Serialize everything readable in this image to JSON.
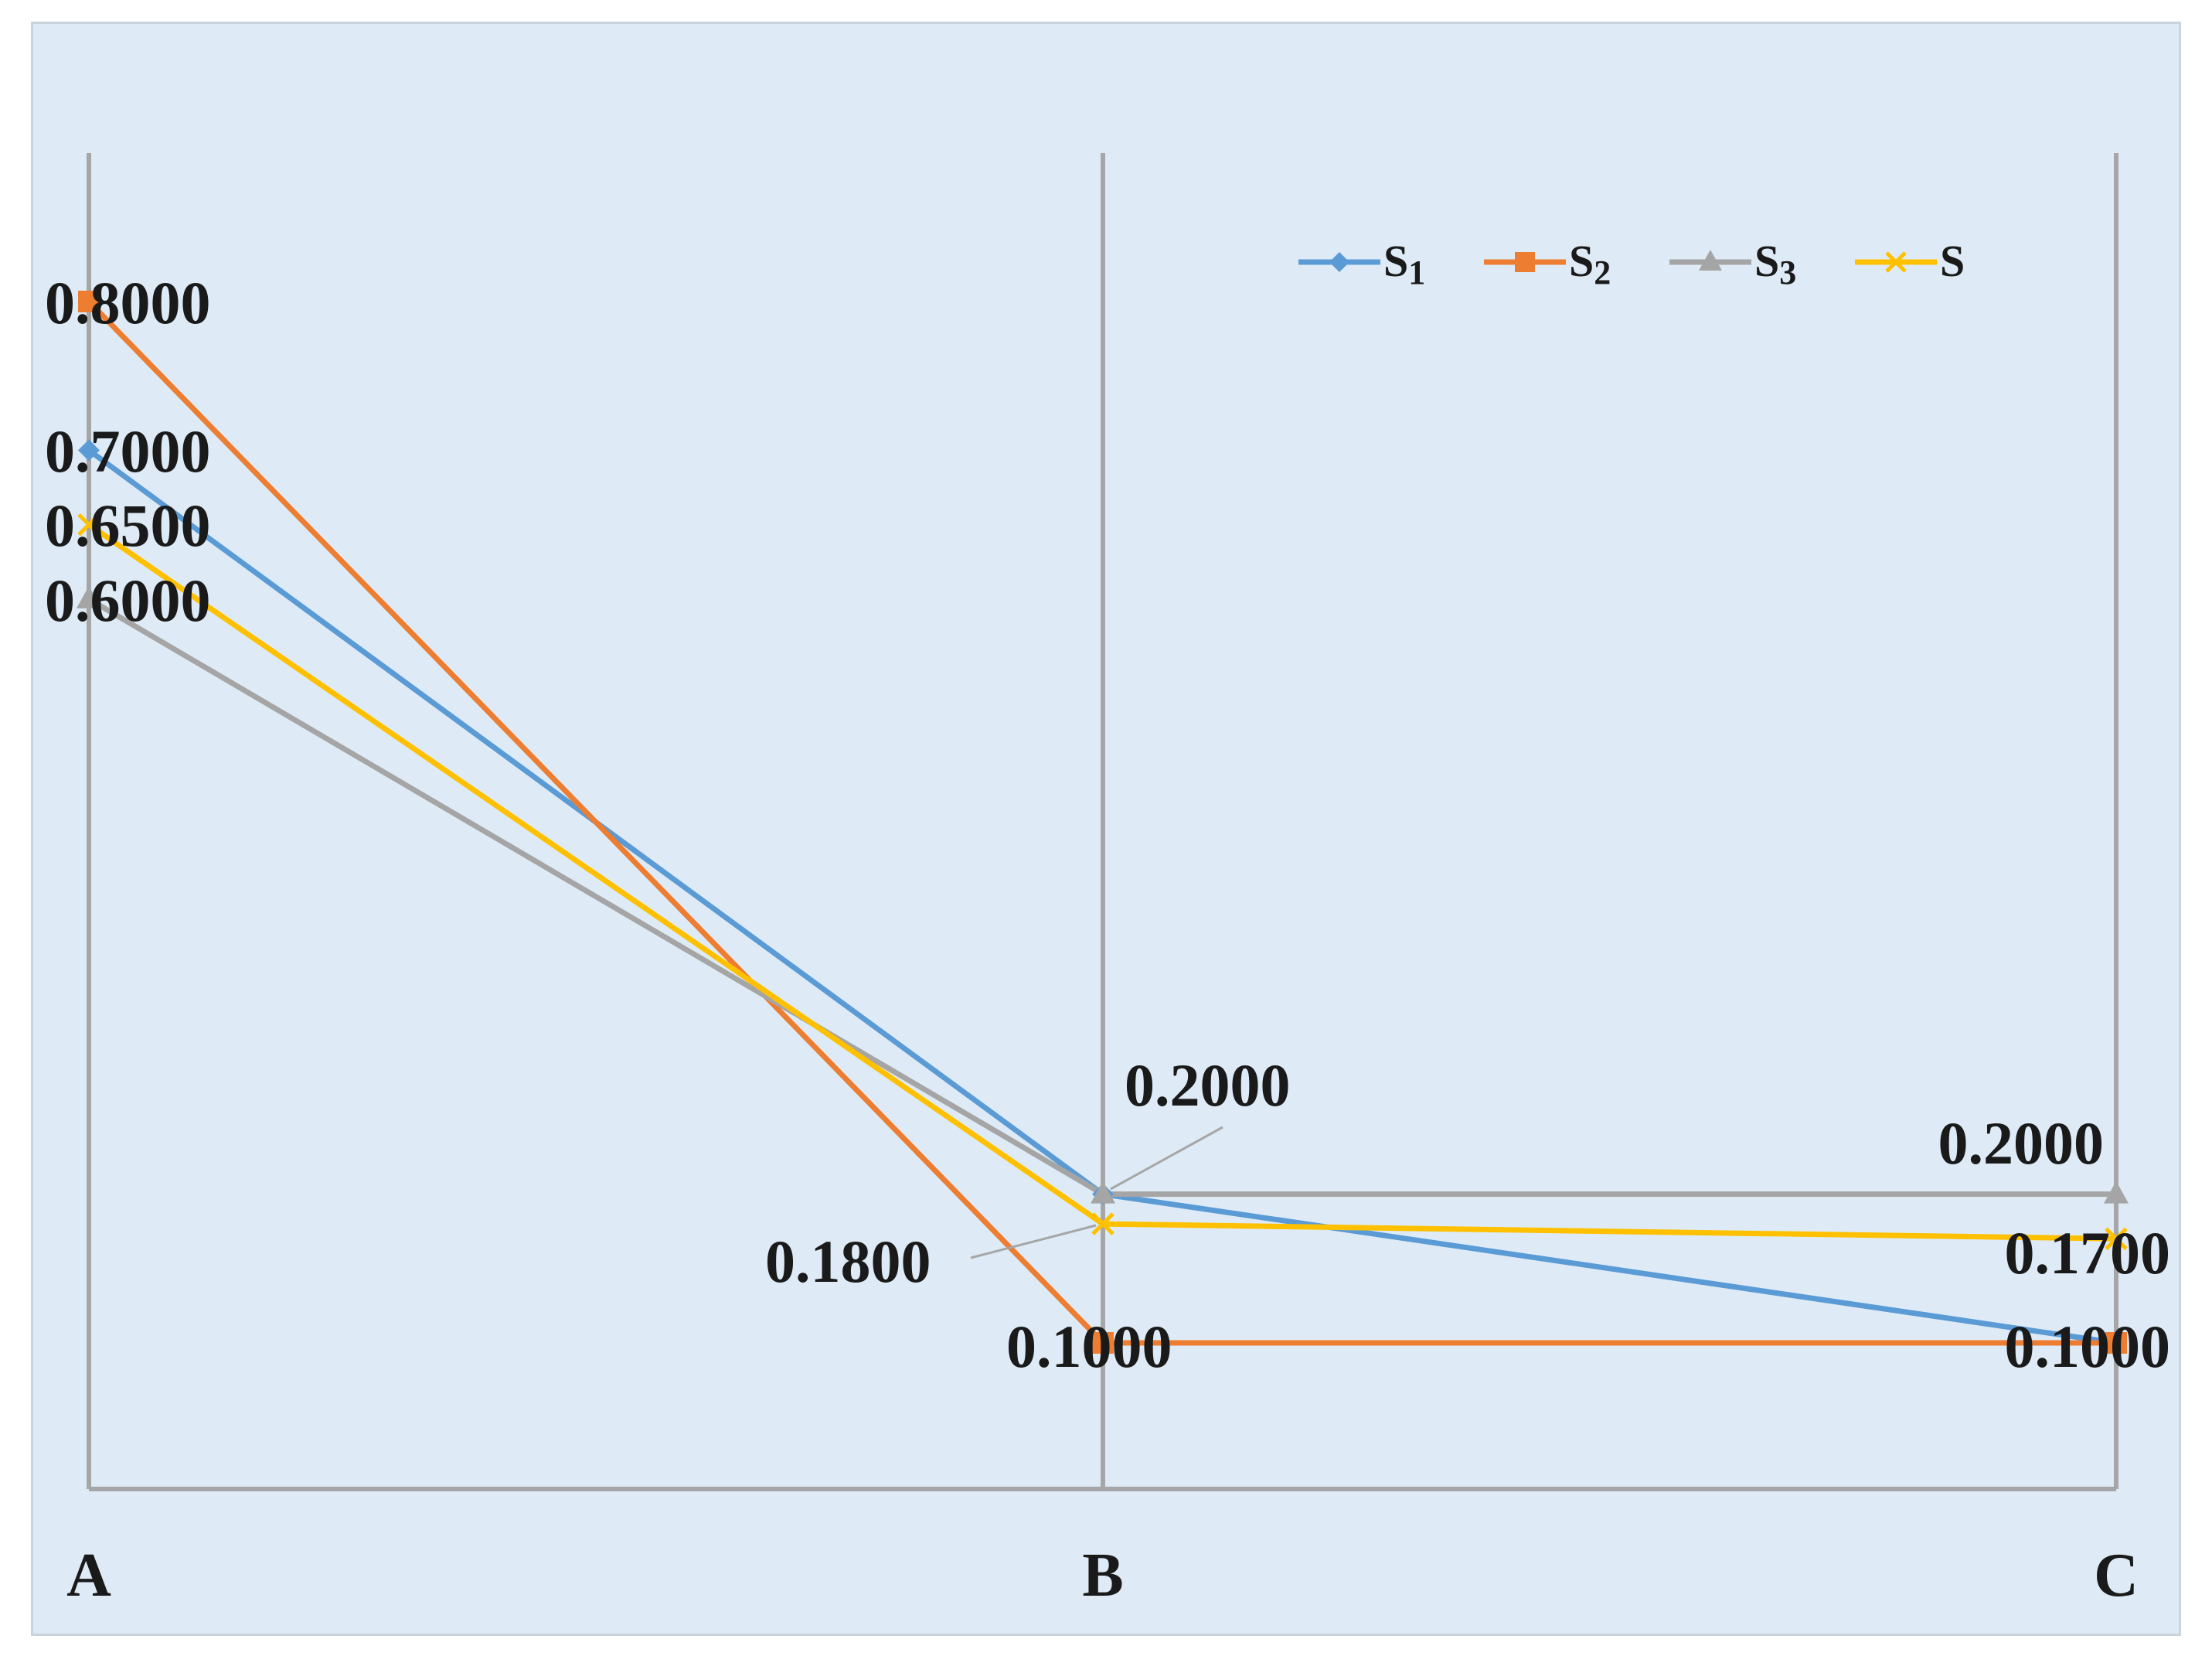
{
  "chart_data": {
    "type": "line",
    "categories": [
      "A",
      "B",
      "C"
    ],
    "ylim": [
      0,
      0.9
    ],
    "series": [
      {
        "name": "S",
        "sub": "1",
        "color": "#5b9bd5",
        "marker": "diamond",
        "values": [
          0.7,
          0.2,
          0.1
        ]
      },
      {
        "name": "S",
        "sub": "2",
        "color": "#ed7d31",
        "marker": "square",
        "values": [
          0.8,
          0.1,
          0.1
        ]
      },
      {
        "name": "S",
        "sub": "3",
        "color": "#a5a5a5",
        "marker": "triangle",
        "values": [
          0.6,
          0.2,
          0.2
        ]
      },
      {
        "name": "S",
        "sub": "",
        "color": "#ffc000",
        "marker": "x",
        "values": [
          0.65,
          0.18,
          0.17
        ]
      }
    ],
    "data_labels": [
      {
        "text": "0.8000",
        "category": "A",
        "value": 0.8
      },
      {
        "text": "0.7000",
        "category": "A",
        "value": 0.7
      },
      {
        "text": "0.6500",
        "category": "A",
        "value": 0.65
      },
      {
        "text": "0.6000",
        "category": "A",
        "value": 0.6
      },
      {
        "text": "0.2000",
        "category": "B",
        "value": 0.2
      },
      {
        "text": "0.1800",
        "category": "B",
        "value": 0.18
      },
      {
        "text": "0.1000",
        "category": "B",
        "value": 0.1
      },
      {
        "text": "0.2000",
        "category": "C",
        "value": 0.2
      },
      {
        "text": "0.1700",
        "category": "C",
        "value": 0.17
      },
      {
        "text": "0.1000",
        "category": "C",
        "value": 0.1
      }
    ],
    "legend_position": "top-right"
  }
}
